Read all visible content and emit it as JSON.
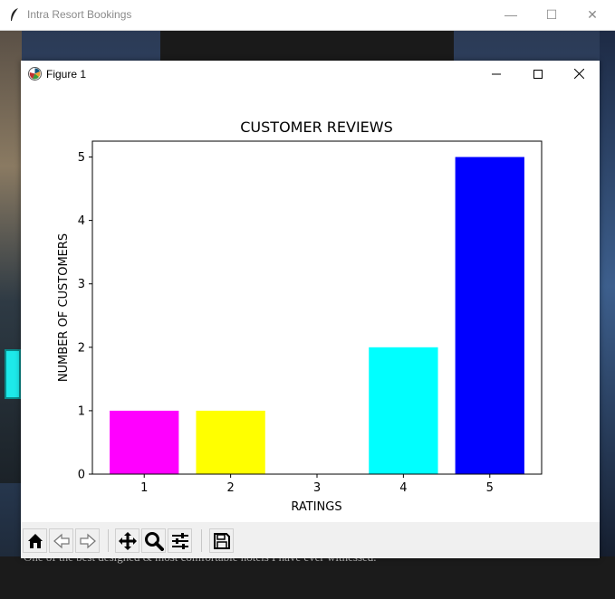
{
  "background_window": {
    "title": "Intra Resort Bookings",
    "caption_fragment": "One of the best designed & most comfortable hotels I have ever witnessed."
  },
  "figure_window": {
    "title": "Figure 1",
    "minimize_glyph": "—",
    "maximize_glyph": "☐",
    "close_glyph": "✕"
  },
  "toolbar": {
    "buttons": [
      {
        "name": "home",
        "icon": "home-icon"
      },
      {
        "name": "back",
        "icon": "arrow-left-icon"
      },
      {
        "name": "forward",
        "icon": "arrow-right-icon"
      },
      {
        "name": "pan",
        "icon": "move-icon"
      },
      {
        "name": "zoom",
        "icon": "magnifier-icon"
      },
      {
        "name": "configure",
        "icon": "sliders-icon"
      },
      {
        "name": "save",
        "icon": "floppy-disk-icon"
      }
    ]
  },
  "chart_data": {
    "type": "bar",
    "title": "CUSTOMER REVIEWS",
    "xlabel": "RATINGS",
    "ylabel": "NUMBER OF CUSTOMERS",
    "categories": [
      "1",
      "2",
      "3",
      "4",
      "5"
    ],
    "values": [
      1,
      1,
      0,
      2,
      5
    ],
    "colors": [
      "#ff00ff",
      "#ffff00",
      "#ff0000",
      "#00ffff",
      "#0000ff"
    ],
    "yticks": [
      0,
      1,
      2,
      3,
      4,
      5
    ],
    "ylim": [
      0,
      5.25
    ],
    "grid": false
  }
}
